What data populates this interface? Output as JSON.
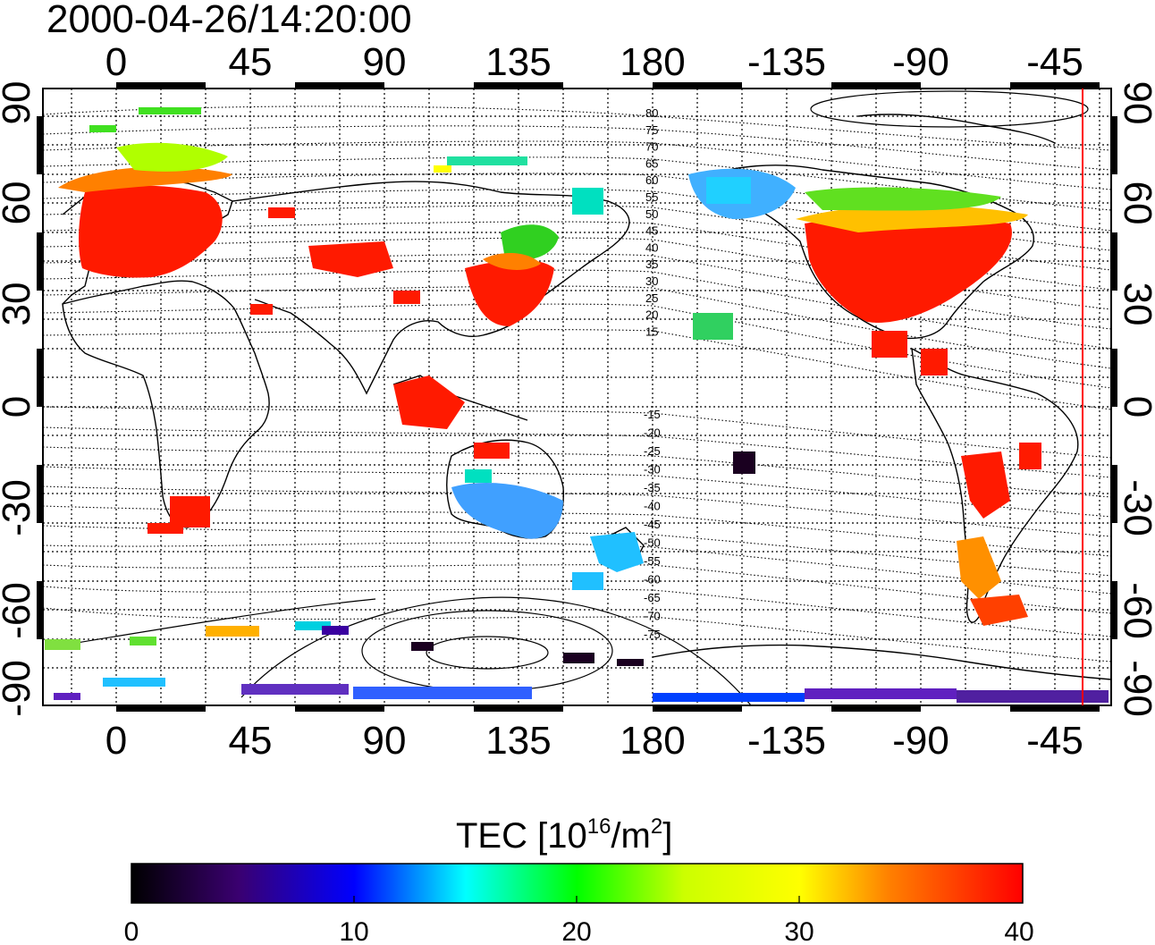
{
  "title": "2000-04-26/14:20:00",
  "map": {
    "lon_ticks": [
      "0",
      "45",
      "90",
      "135",
      "180",
      "-135",
      "-90",
      "-45"
    ],
    "lat_ticks": [
      "90",
      "60",
      "30",
      "0",
      "-30",
      "-60",
      "-90"
    ],
    "contour_labels_north": [
      "80",
      "75",
      "70",
      "65",
      "60",
      "55",
      "50",
      "45",
      "40",
      "35",
      "30",
      "25",
      "20",
      "15"
    ],
    "contour_labels_south": [
      "-15",
      "-20",
      "-25",
      "-30",
      "-35",
      "-40",
      "-45",
      "-50",
      "-55",
      "-60",
      "-65",
      "-70",
      "-75"
    ],
    "terminator_line_color": "#ff0000",
    "grid": true
  },
  "colorbar": {
    "label_prefix": "TEC  [10",
    "label_exp": "16",
    "label_mid": "/m",
    "label_exp2": "2",
    "label_suffix": "]",
    "ticks": [
      "0",
      "10",
      "20",
      "30",
      "40"
    ],
    "range": [
      0,
      40
    ],
    "colors": [
      "#000000",
      "#3a0070",
      "#0000ff",
      "#00ffff",
      "#00ff00",
      "#ffff00",
      "#ff8000",
      "#ff0000"
    ]
  }
}
